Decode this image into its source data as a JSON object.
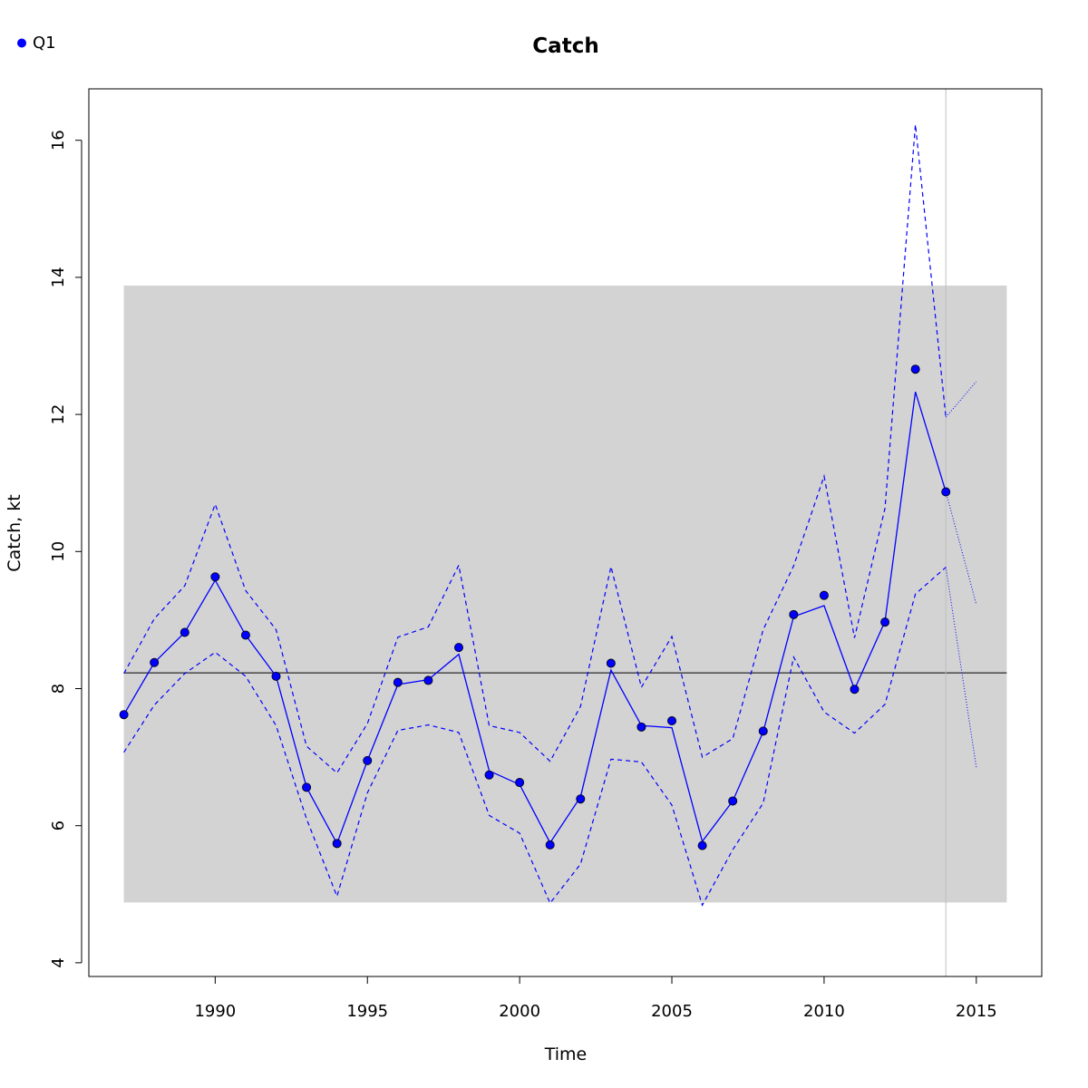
{
  "chart_data": {
    "type": "line",
    "title": "Catch",
    "xlabel": "Time",
    "ylabel": "Catch, kt",
    "xlim": [
      1985.85,
      2017.15
    ],
    "ylim": [
      3.8,
      16.75
    ],
    "xticks": [
      1990,
      1995,
      2000,
      2005,
      2010,
      2015
    ],
    "yticks": [
      4,
      6,
      8,
      10,
      12,
      14,
      16
    ],
    "legend": {
      "position": "top-left",
      "entries": [
        "Q1"
      ]
    },
    "band": {
      "x": [
        1987,
        2016
      ],
      "y": [
        4.88,
        13.88
      ],
      "color": "#d3d3d3"
    },
    "reference_line": {
      "y": 8.23,
      "x": [
        1987,
        2016
      ],
      "color": "#000000"
    },
    "vertical_line": {
      "x": 2014,
      "color": "#bebebe"
    },
    "series": [
      {
        "name": "Q1",
        "color": "#0000ff",
        "observed": {
          "x": [
            1987,
            1988,
            1989,
            1990,
            1991,
            1992,
            1993,
            1994,
            1995,
            1996,
            1997,
            1998,
            1999,
            2000,
            2001,
            2002,
            2003,
            2004,
            2005,
            2006,
            2007,
            2008,
            2009,
            2010,
            2011,
            2012,
            2013,
            2014
          ],
          "y": [
            7.62,
            8.38,
            8.82,
            9.63,
            8.78,
            8.18,
            6.56,
            5.74,
            6.95,
            8.09,
            8.12,
            8.6,
            6.74,
            6.63,
            5.72,
            6.39,
            8.37,
            7.44,
            7.53,
            5.71,
            6.36,
            7.38,
            9.08,
            9.36,
            7.99,
            8.97,
            12.66,
            10.87
          ]
        },
        "fit": {
          "x": [
            1987,
            1988,
            1989,
            1990,
            1991,
            1992,
            1993,
            1994,
            1995,
            1996,
            1997,
            1998,
            1999,
            2000,
            2001,
            2002,
            2003,
            2004,
            2005,
            2006,
            2007,
            2008,
            2009,
            2010,
            2011,
            2012,
            2013,
            2014
          ],
          "y": [
            7.62,
            8.38,
            8.82,
            9.58,
            8.78,
            8.18,
            6.56,
            5.74,
            6.95,
            8.06,
            8.13,
            8.5,
            6.8,
            6.6,
            5.75,
            6.42,
            8.27,
            7.46,
            7.43,
            5.77,
            6.36,
            7.37,
            9.05,
            9.21,
            7.99,
            8.98,
            12.33,
            10.87
          ]
        },
        "upper": {
          "x": [
            1987,
            1988,
            1989,
            1990,
            1991,
            1992,
            1993,
            1994,
            1995,
            1996,
            1997,
            1998,
            1999,
            2000,
            2001,
            2002,
            2003,
            2004,
            2005,
            2006,
            2007,
            2008,
            2009,
            2010,
            2011,
            2012,
            2013,
            2014
          ],
          "y": [
            8.22,
            9.02,
            9.5,
            10.69,
            9.43,
            8.86,
            7.16,
            6.77,
            7.49,
            8.75,
            8.9,
            9.8,
            7.46,
            7.36,
            6.94,
            7.74,
            9.78,
            8.02,
            8.76,
            7.0,
            7.27,
            8.86,
            9.79,
            11.1,
            8.74,
            10.63,
            16.23,
            11.96
          ]
        },
        "lower": {
          "x": [
            1987,
            1988,
            1989,
            1990,
            1991,
            1992,
            1993,
            1994,
            1995,
            1996,
            1997,
            1998,
            1999,
            2000,
            2001,
            2002,
            2003,
            2004,
            2005,
            2006,
            2007,
            2008,
            2009,
            2010,
            2011,
            2012,
            2013,
            2014
          ],
          "y": [
            7.07,
            7.76,
            8.22,
            8.53,
            8.18,
            7.46,
            6.1,
            4.97,
            6.48,
            7.39,
            7.47,
            7.36,
            6.15,
            5.89,
            4.87,
            5.44,
            6.97,
            6.93,
            6.3,
            4.84,
            5.65,
            6.33,
            8.46,
            7.66,
            7.35,
            7.77,
            9.38,
            9.77
          ]
        },
        "projection": {
          "mid": {
            "x": [
              2014,
              2015
            ],
            "y": [
              10.87,
              9.23
            ]
          },
          "upper": {
            "x": [
              2014,
              2015
            ],
            "y": [
              11.96,
              12.48
            ]
          },
          "lower": {
            "x": [
              2014,
              2015
            ],
            "y": [
              9.77,
              6.85
            ]
          }
        }
      }
    ]
  }
}
